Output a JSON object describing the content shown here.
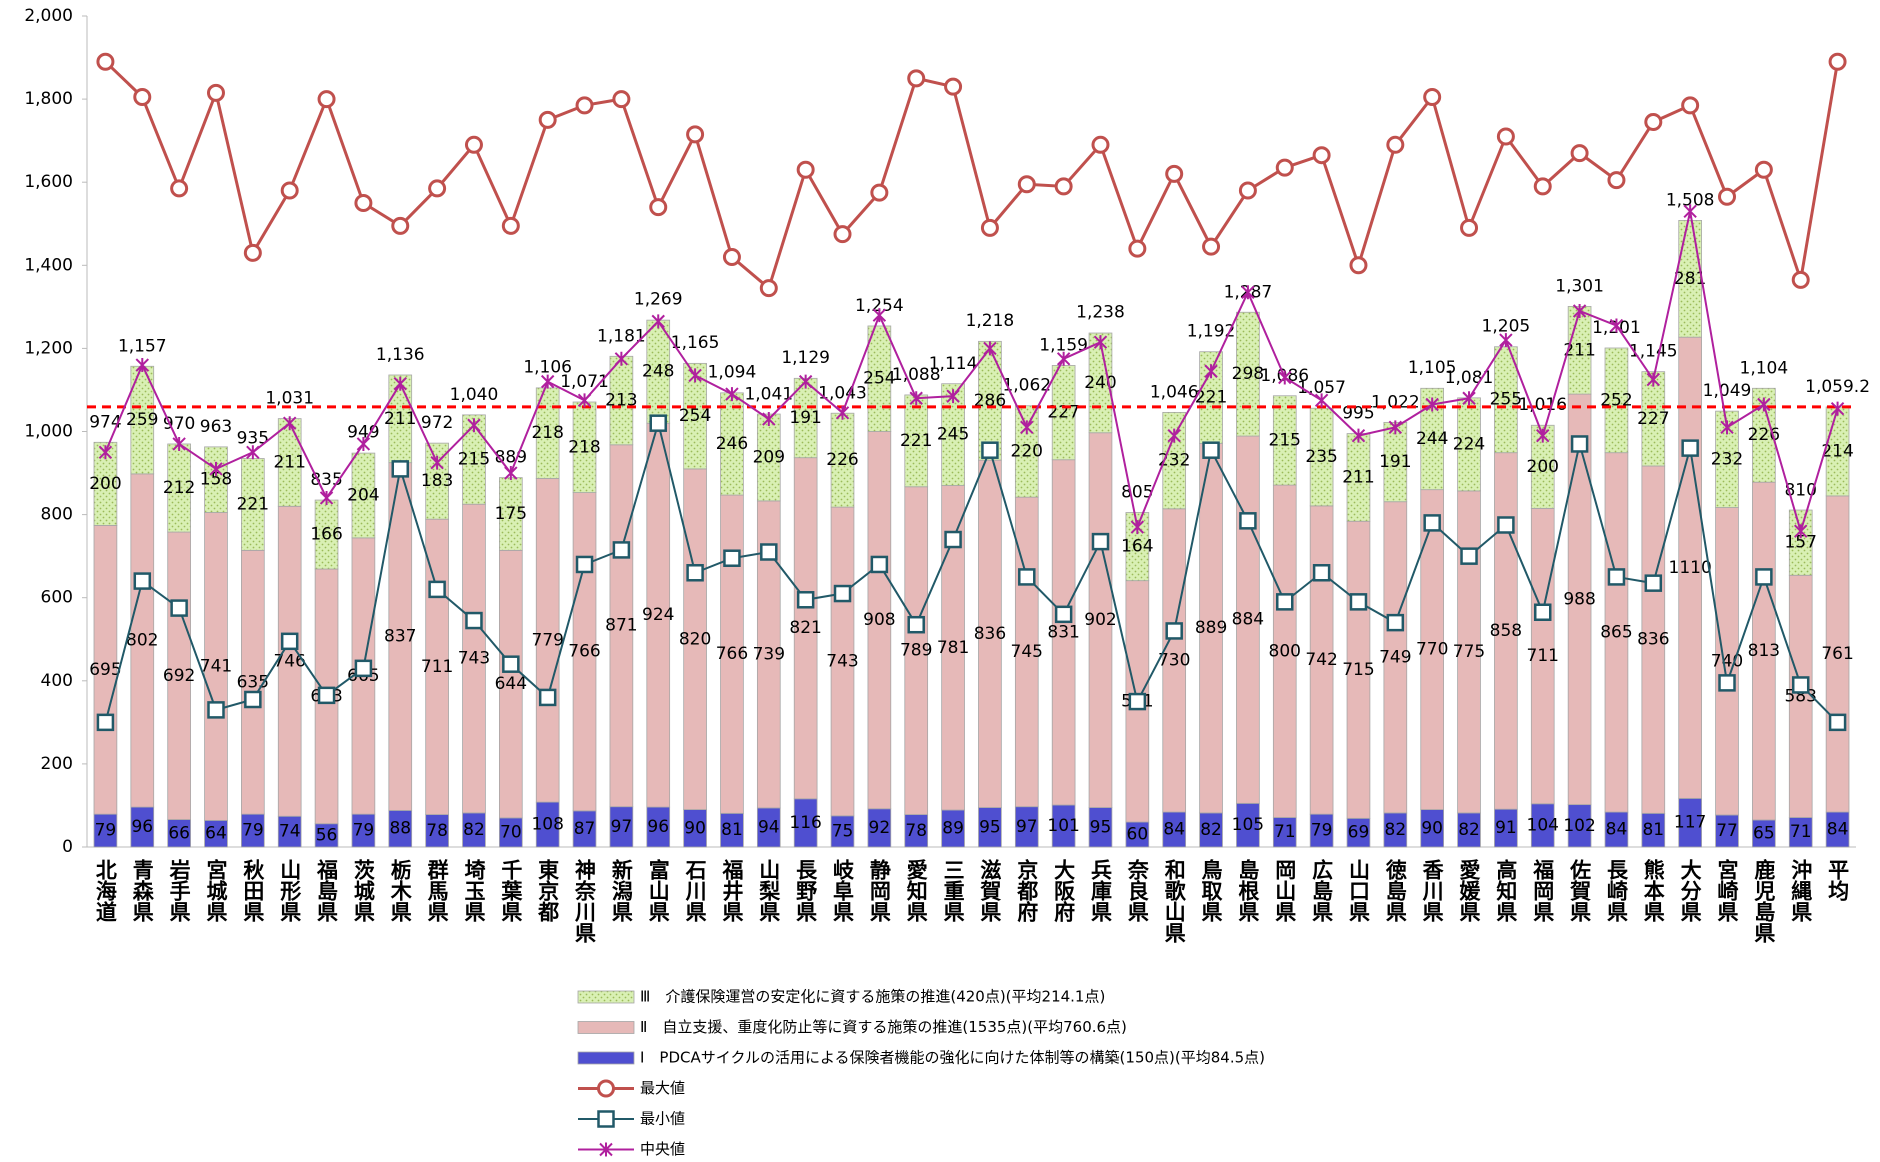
{
  "chart_data": {
    "type": "bar",
    "categories": [
      "北海道",
      "青森県",
      "岩手県",
      "宮城県",
      "秋田県",
      "山形県",
      "福島県",
      "茨城県",
      "栃木県",
      "群馬県",
      "埼玉県",
      "千葉県",
      "東京都",
      "神奈川県",
      "新潟県",
      "富山県",
      "石川県",
      "福井県",
      "山梨県",
      "長野県",
      "岐阜県",
      "静岡県",
      "愛知県",
      "三重県",
      "滋賀県",
      "京都府",
      "大阪府",
      "兵庫県",
      "奈良県",
      "和歌山県",
      "鳥取県",
      "島根県",
      "岡山県",
      "広島県",
      "山口県",
      "徳島県",
      "香川県",
      "愛媛県",
      "高知県",
      "福岡県",
      "佐賀県",
      "長崎県",
      "熊本県",
      "大分県",
      "宮崎県",
      "鹿児島県",
      "沖縄県",
      "平均"
    ],
    "series": [
      {
        "name": "Ⅲ　介護保険運営の安定化に資する施策の推進(420点)(平均214.1点)",
        "type": "bar",
        "color": "#d9f0b4",
        "values": [
          200,
          259,
          212,
          158,
          221,
          211,
          166,
          204,
          211,
          183,
          215,
          175,
          218,
          218,
          213,
          248,
          254,
          246,
          209,
          191,
          226,
          254,
          221,
          245,
          286,
          220,
          227,
          240,
          164,
          232,
          221,
          298,
          215,
          235,
          211,
          191,
          244,
          224,
          255,
          200,
          211,
          252,
          227,
          281,
          232,
          226,
          157,
          214
        ]
      },
      {
        "name": "Ⅱ　自立支援、重度化防止等に資する施策の推進(1535点)(平均760.6点)",
        "type": "bar",
        "color": "#e6b9b8",
        "values": [
          695,
          802,
          692,
          741,
          635,
          746,
          613,
          665,
          837,
          711,
          743,
          644,
          779,
          766,
          871,
          924,
          820,
          766,
          739,
          821,
          743,
          908,
          789,
          781,
          836,
          745,
          831,
          902,
          581,
          730,
          889,
          884,
          800,
          742,
          715,
          749,
          770,
          775,
          858,
          711,
          988,
          865,
          836,
          1110,
          740,
          813,
          583,
          761
        ]
      },
      {
        "name": "Ⅰ　PDCAサイクルの活用による保険者機能の強化に向けた体制等の構築(150点)(平均84.5点)",
        "type": "bar",
        "color": "#4f4fd0",
        "values": [
          79,
          96,
          66,
          64,
          79,
          74,
          56,
          79,
          88,
          78,
          82,
          70,
          108,
          87,
          97,
          96,
          90,
          81,
          94,
          116,
          75,
          92,
          78,
          89,
          95,
          97,
          101,
          95,
          60,
          84,
          82,
          105,
          71,
          79,
          69,
          82,
          90,
          82,
          91,
          104,
          102,
          84,
          81,
          117,
          77,
          65,
          71,
          84
        ]
      },
      {
        "name": "最大値",
        "type": "line",
        "marker": "circle",
        "color": "#c0504d",
        "values": [
          1890,
          1805,
          1585,
          1815,
          1430,
          1580,
          1800,
          1550,
          1495,
          1585,
          1690,
          1495,
          1750,
          1785,
          1800,
          1540,
          1715,
          1420,
          1345,
          1630,
          1475,
          1575,
          1850,
          1830,
          1490,
          1595,
          1590,
          1690,
          1440,
          1620,
          1445,
          1580,
          1635,
          1665,
          1400,
          1690,
          1805,
          1490,
          1710,
          1590,
          1670,
          1605,
          1745,
          1785,
          1565,
          1630,
          1365,
          1890
        ]
      },
      {
        "name": "最小値",
        "type": "line",
        "marker": "square",
        "color": "#215968",
        "values": [
          300,
          640,
          575,
          330,
          355,
          495,
          365,
          430,
          910,
          620,
          545,
          440,
          360,
          680,
          715,
          1020,
          660,
          695,
          710,
          595,
          610,
          680,
          535,
          740,
          955,
          650,
          560,
          735,
          350,
          520,
          955,
          785,
          590,
          660,
          590,
          540,
          780,
          700,
          775,
          565,
          970,
          650,
          635,
          960,
          395,
          650,
          390,
          300
        ]
      },
      {
        "name": "中央値",
        "type": "line",
        "marker": "star",
        "color": "#b0209e",
        "values": [
          950,
          1160,
          970,
          910,
          950,
          1020,
          840,
          970,
          1115,
          925,
          1015,
          900,
          1120,
          1075,
          1175,
          1265,
          1135,
          1090,
          1030,
          1120,
          1045,
          1280,
          1080,
          1085,
          1200,
          1010,
          1175,
          1215,
          770,
          990,
          1145,
          1335,
          1130,
          1075,
          990,
          1010,
          1065,
          1080,
          1220,
          990,
          1290,
          1255,
          1125,
          1530,
          1010,
          1065,
          760,
          1055
        ]
      }
    ],
    "totals": {
      "values": [
        974,
        1157,
        970,
        963,
        935,
        1031,
        835,
        949,
        1136,
        972,
        1040,
        889,
        1106,
        1071,
        1181,
        1269,
        1165,
        1094,
        1041,
        1129,
        1043,
        1254,
        1088,
        1114,
        1218,
        1062,
        1159,
        1238,
        805,
        1046,
        1192,
        1287,
        1086,
        1057,
        995,
        1022,
        1105,
        1081,
        1205,
        1016,
        1301,
        1201,
        1145,
        1508,
        1049,
        1104,
        810,
        1059.2
      ],
      "value_labels": [
        "974",
        "1,157",
        "970",
        "963",
        "935",
        "1,031",
        "835",
        "949",
        "1,136",
        "972",
        "1,040",
        "889",
        "1,106",
        "1,071",
        "1,181",
        "1,269",
        "1,165",
        "1,094",
        "1,041",
        "1,129",
        "1,043",
        "1,254",
        "1,088",
        "1,114",
        "1,218",
        "1,062",
        "1,159",
        "1,238",
        "805",
        "1,046",
        "1,192",
        "1,287",
        "1,086",
        "1,057",
        "995",
        "1,022",
        "1,105",
        "1,081",
        "1,205",
        "1,016",
        "1,301",
        "1,201",
        "1,145",
        "1,508",
        "1,049",
        "1,104",
        "810",
        "1,059.2"
      ]
    },
    "average_line": {
      "value": 1059.2,
      "color": "#ff0000"
    },
    "ylim": [
      0,
      2000
    ],
    "yticks": [
      0,
      200,
      400,
      600,
      800,
      {
        "value": 1000,
        "label": "1,000"
      },
      {
        "value": 1200,
        "label": "1,200"
      },
      {
        "value": 1400,
        "label": "1,400"
      },
      {
        "value": 1600,
        "label": "1,600"
      },
      {
        "value": 1800,
        "label": "1,800"
      },
      {
        "value": 2000,
        "label": "2,000"
      }
    ],
    "grid": false,
    "legend": "bottom"
  }
}
